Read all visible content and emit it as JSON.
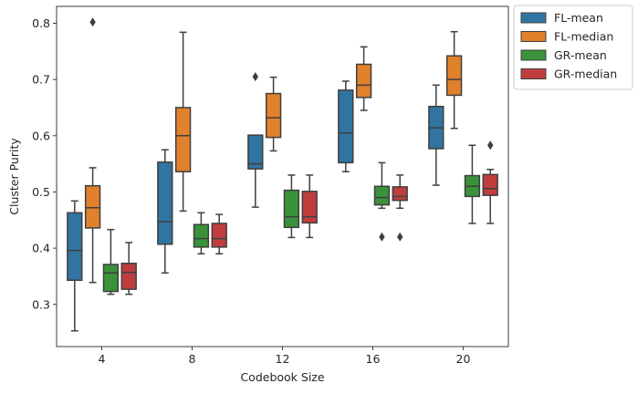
{
  "chart_data": {
    "type": "box",
    "xlabel": "Codebook Size",
    "ylabel": "Cluster Purity",
    "categories": [
      "4",
      "8",
      "12",
      "16",
      "20"
    ],
    "ylim": [
      0.225,
      0.83
    ],
    "yticks": [
      0.3,
      0.4,
      0.5,
      0.6,
      0.7,
      0.8
    ],
    "ytick_labels": [
      "0.3",
      "0.4",
      "0.5",
      "0.6",
      "0.7",
      "0.8"
    ],
    "grid": false,
    "legend_position": "outside-top-right",
    "series": [
      {
        "name": "FL-mean",
        "color": "#3274a1",
        "boxes": [
          {
            "whisker_low": 0.253,
            "q1": 0.343,
            "median": 0.396,
            "q3": 0.463,
            "whisker_high": 0.484,
            "outliers": []
          },
          {
            "whisker_low": 0.356,
            "q1": 0.407,
            "median": 0.447,
            "q3": 0.553,
            "whisker_high": 0.575,
            "outliers": []
          },
          {
            "whisker_low": 0.473,
            "q1": 0.541,
            "median": 0.55,
            "q3": 0.601,
            "whisker_high": 0.601,
            "outliers": [
              0.705
            ]
          },
          {
            "whisker_low": 0.536,
            "q1": 0.552,
            "median": 0.605,
            "q3": 0.681,
            "whisker_high": 0.697,
            "outliers": []
          },
          {
            "whisker_low": 0.512,
            "q1": 0.577,
            "median": 0.614,
            "q3": 0.652,
            "whisker_high": 0.69,
            "outliers": []
          }
        ]
      },
      {
        "name": "FL-median",
        "color": "#e1812c",
        "boxes": [
          {
            "whisker_low": 0.339,
            "q1": 0.436,
            "median": 0.472,
            "q3": 0.511,
            "whisker_high": 0.543,
            "outliers": [
              0.802
            ]
          },
          {
            "whisker_low": 0.466,
            "q1": 0.536,
            "median": 0.6,
            "q3": 0.65,
            "whisker_high": 0.784,
            "outliers": []
          },
          {
            "whisker_low": 0.573,
            "q1": 0.597,
            "median": 0.632,
            "q3": 0.675,
            "whisker_high": 0.704,
            "outliers": []
          },
          {
            "whisker_low": 0.645,
            "q1": 0.668,
            "median": 0.69,
            "q3": 0.727,
            "whisker_high": 0.758,
            "outliers": []
          },
          {
            "whisker_low": 0.613,
            "q1": 0.672,
            "median": 0.7,
            "q3": 0.742,
            "whisker_high": 0.785,
            "outliers": []
          }
        ]
      },
      {
        "name": "GR-mean",
        "color": "#3a923a",
        "boxes": [
          {
            "whisker_low": 0.318,
            "q1": 0.323,
            "median": 0.356,
            "q3": 0.371,
            "whisker_high": 0.433,
            "outliers": []
          },
          {
            "whisker_low": 0.39,
            "q1": 0.402,
            "median": 0.417,
            "q3": 0.442,
            "whisker_high": 0.463,
            "outliers": []
          },
          {
            "whisker_low": 0.419,
            "q1": 0.437,
            "median": 0.456,
            "q3": 0.503,
            "whisker_high": 0.53,
            "outliers": []
          },
          {
            "whisker_low": 0.471,
            "q1": 0.477,
            "median": 0.49,
            "q3": 0.51,
            "whisker_high": 0.552,
            "outliers": [
              0.42
            ]
          },
          {
            "whisker_low": 0.444,
            "q1": 0.492,
            "median": 0.51,
            "q3": 0.529,
            "whisker_high": 0.583,
            "outliers": []
          }
        ]
      },
      {
        "name": "GR-median",
        "color": "#c03d3e",
        "boxes": [
          {
            "whisker_low": 0.318,
            "q1": 0.327,
            "median": 0.357,
            "q3": 0.373,
            "whisker_high": 0.41,
            "outliers": []
          },
          {
            "whisker_low": 0.39,
            "q1": 0.402,
            "median": 0.417,
            "q3": 0.444,
            "whisker_high": 0.46,
            "outliers": []
          },
          {
            "whisker_low": 0.419,
            "q1": 0.445,
            "median": 0.456,
            "q3": 0.501,
            "whisker_high": 0.53,
            "outliers": []
          },
          {
            "whisker_low": 0.471,
            "q1": 0.485,
            "median": 0.492,
            "q3": 0.509,
            "whisker_high": 0.53,
            "outliers": [
              0.42
            ]
          },
          {
            "whisker_low": 0.444,
            "q1": 0.494,
            "median": 0.506,
            "q3": 0.531,
            "whisker_high": 0.54,
            "outliers": [
              0.583
            ]
          }
        ]
      }
    ]
  }
}
